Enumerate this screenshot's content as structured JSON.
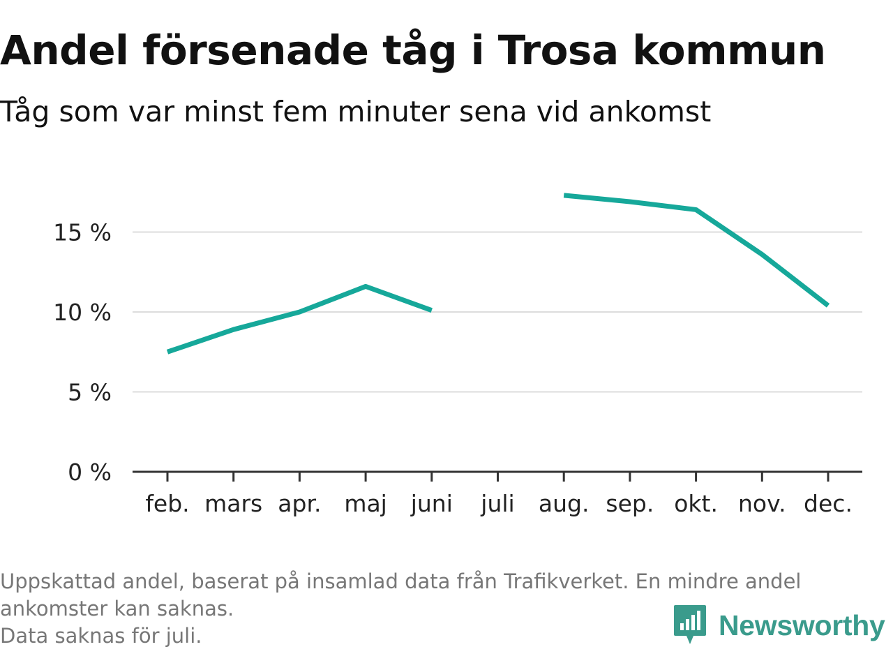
{
  "title": "Andel försenade tåg i Trosa kommun",
  "subtitle": "Tåg som var minst fem minuter sena vid ankomst",
  "footnote": {
    "lines": [
      "Uppskattad andel, baserat på insamlad data från Trafikverket. En mindre andel",
      "ankomster kan saknas.",
      "Data saknas för juli."
    ]
  },
  "brand": {
    "name": "Newsworthy",
    "icon": "bar-chart-speech-bubble-icon",
    "color": "#3a9b8c"
  },
  "chart_data": {
    "type": "line",
    "categories": [
      "feb.",
      "mars",
      "apr.",
      "maj",
      "juni",
      "juli",
      "aug.",
      "sep.",
      "okt.",
      "nov.",
      "dec."
    ],
    "series": [
      {
        "values": [
          7.5,
          8.9,
          10.0,
          11.6,
          10.1,
          null,
          17.3,
          16.9,
          16.4,
          13.6,
          10.4
        ]
      }
    ],
    "yticks": [
      0,
      5,
      10,
      15
    ],
    "ytick_labels": [
      "0 %",
      "5 %",
      "10 %",
      "15 %"
    ],
    "ylim": [
      0,
      18
    ],
    "grid": true,
    "line_color": "#16a89a",
    "xlabel": "",
    "ylabel": ""
  }
}
